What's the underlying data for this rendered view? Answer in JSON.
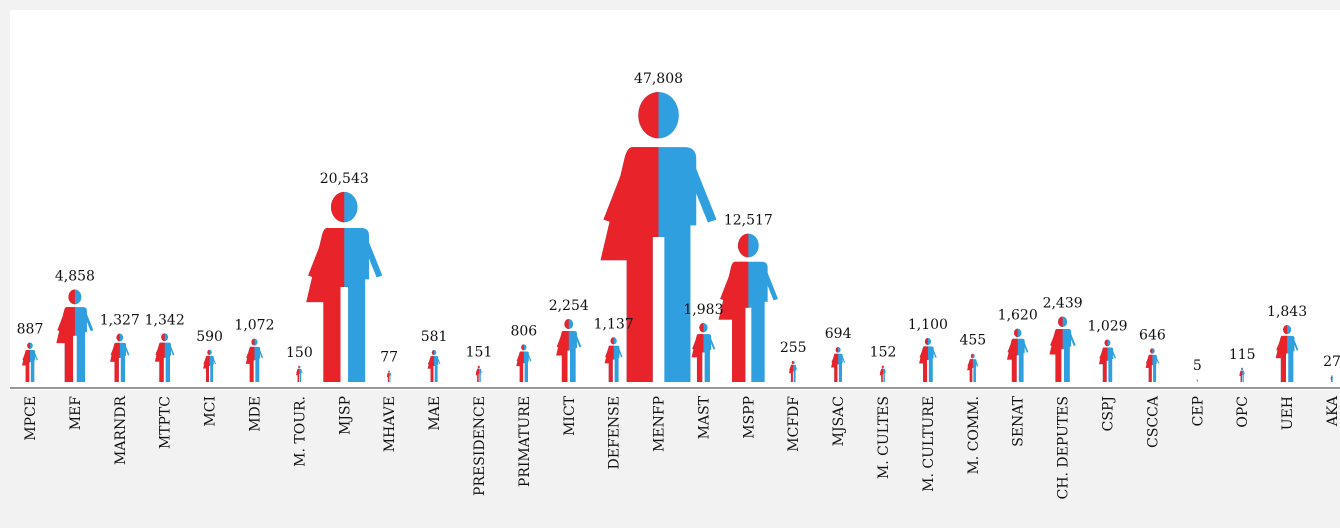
{
  "colors": {
    "background": "#f2f2f2",
    "plot_area": "#ffffff",
    "female": "#e8232a",
    "male": "#2f9fe0",
    "text": "#111111",
    "axis": "#333333"
  },
  "icon": "pictogram-person-half-female-half-male",
  "chart_data": {
    "type": "bar",
    "mark": "pictogram (figure scaled by value, split red/blue)",
    "title": "",
    "xlabel": "",
    "ylabel": "",
    "ylim": [
      0,
      47808
    ],
    "grid": false,
    "legend": "none",
    "categories": [
      "MPCE",
      "MEF",
      "MARNDR",
      "MTPTC",
      "MCI",
      "MDE",
      "M. TOUR.",
      "MJSP",
      "MHAVE",
      "MAE",
      "PRESIDENCE",
      "PRIMATURE",
      "MICT",
      "DEFENSE",
      "MENFP",
      "MAST",
      "MSPP",
      "MCFDF",
      "MJSAC",
      "M. CULTES",
      "M. CULTURE",
      "M. COMM.",
      "SENAT",
      "CH. DEPUTES",
      "CSPJ",
      "CSCCA",
      "CEP",
      "OPC",
      "UEH",
      "AKA"
    ],
    "values": [
      887,
      4858,
      1327,
      1342,
      590,
      1072,
      150,
      20543,
      77,
      581,
      151,
      806,
      2254,
      1137,
      47808,
      1983,
      12517,
      255,
      694,
      152,
      1100,
      455,
      1620,
      2439,
      1029,
      646,
      5,
      115,
      1843,
      27
    ],
    "value_labels": [
      "887",
      "4,858",
      "1,327",
      "1,342",
      "590",
      "1,072",
      "150",
      "20,543",
      "77",
      "581",
      "151",
      "806",
      "2,254",
      "1,137",
      "47,808",
      "1,983",
      "12,517",
      "255",
      "694",
      "152",
      "1,100",
      "455",
      "1,620",
      "2,439",
      "1,029",
      "646",
      "5",
      "115",
      "1,843",
      "27"
    ]
  }
}
